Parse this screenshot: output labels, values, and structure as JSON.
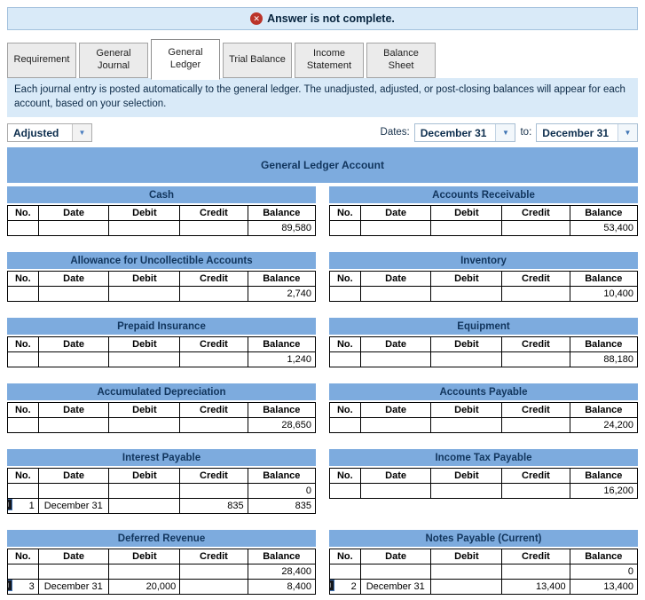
{
  "banner": {
    "text": "Answer is not complete."
  },
  "tabs": [
    {
      "label": "Requirement",
      "active": false
    },
    {
      "label": "General Journal",
      "active": false
    },
    {
      "label": "General Ledger",
      "active": true
    },
    {
      "label": "Trial Balance",
      "active": false
    },
    {
      "label": "Income Statement",
      "active": false
    },
    {
      "label": "Balance Sheet",
      "active": false
    }
  ],
  "description": "Each journal entry is posted automatically to the general ledger. The unadjusted, adjusted, or post-closing balances will appear for each account, based on your selection.",
  "controls": {
    "view_selected": "Adjusted",
    "dates_label": "Dates:",
    "to_label": "to:",
    "date_from": "December 31",
    "date_to": "December 31"
  },
  "ledger": {
    "title": "General Ledger Account",
    "columns": [
      "No.",
      "Date",
      "Debit",
      "Credit",
      "Balance"
    ],
    "accounts": [
      {
        "name": "Cash",
        "rows": [
          {
            "no": "",
            "date": "",
            "debit": "",
            "credit": "",
            "balance": "89,580",
            "icon": false
          }
        ]
      },
      {
        "name": "Accounts Receivable",
        "rows": [
          {
            "no": "",
            "date": "",
            "debit": "",
            "credit": "",
            "balance": "53,400",
            "icon": false
          }
        ]
      },
      {
        "name": "Allowance for Uncollectible Accounts",
        "rows": [
          {
            "no": "",
            "date": "",
            "debit": "",
            "credit": "",
            "balance": "2,740",
            "icon": false
          }
        ]
      },
      {
        "name": "Inventory",
        "rows": [
          {
            "no": "",
            "date": "",
            "debit": "",
            "credit": "",
            "balance": "10,400",
            "icon": false
          }
        ]
      },
      {
        "name": "Prepaid Insurance",
        "rows": [
          {
            "no": "",
            "date": "",
            "debit": "",
            "credit": "",
            "balance": "1,240",
            "icon": false
          }
        ]
      },
      {
        "name": "Equipment",
        "rows": [
          {
            "no": "",
            "date": "",
            "debit": "",
            "credit": "",
            "balance": "88,180",
            "icon": false
          }
        ]
      },
      {
        "name": "Accumulated Depreciation",
        "rows": [
          {
            "no": "",
            "date": "",
            "debit": "",
            "credit": "",
            "balance": "28,650",
            "icon": false
          }
        ]
      },
      {
        "name": "Accounts Payable",
        "rows": [
          {
            "no": "",
            "date": "",
            "debit": "",
            "credit": "",
            "balance": "24,200",
            "icon": false
          }
        ]
      },
      {
        "name": "Interest Payable",
        "rows": [
          {
            "no": "",
            "date": "",
            "debit": "",
            "credit": "",
            "balance": "0",
            "icon": false
          },
          {
            "no": "1",
            "date": "December 31",
            "debit": "",
            "credit": "835",
            "balance": "835",
            "icon": true
          }
        ]
      },
      {
        "name": "Income Tax Payable",
        "rows": [
          {
            "no": "",
            "date": "",
            "debit": "",
            "credit": "",
            "balance": "16,200",
            "icon": false
          }
        ]
      },
      {
        "name": "Deferred Revenue",
        "rows": [
          {
            "no": "",
            "date": "",
            "debit": "",
            "credit": "",
            "balance": "28,400",
            "icon": false
          },
          {
            "no": "3",
            "date": "December 31",
            "debit": "20,000",
            "credit": "",
            "balance": "8,400",
            "icon": true
          }
        ]
      },
      {
        "name": "Notes Payable (Current)",
        "rows": [
          {
            "no": "",
            "date": "",
            "debit": "",
            "credit": "",
            "balance": "0",
            "icon": false
          },
          {
            "no": "2",
            "date": "December 31",
            "debit": "",
            "credit": "13,400",
            "balance": "13,400",
            "icon": true
          }
        ]
      }
    ]
  },
  "icons": {
    "error_glyph": "✕",
    "dropdown_arrow": "▼",
    "posted_glyph": "↰"
  },
  "colors": {
    "header_blue": "#7dabde",
    "banner_bg": "#d9eaf8",
    "error_red": "#bb342a",
    "header_text": "#11355d"
  }
}
